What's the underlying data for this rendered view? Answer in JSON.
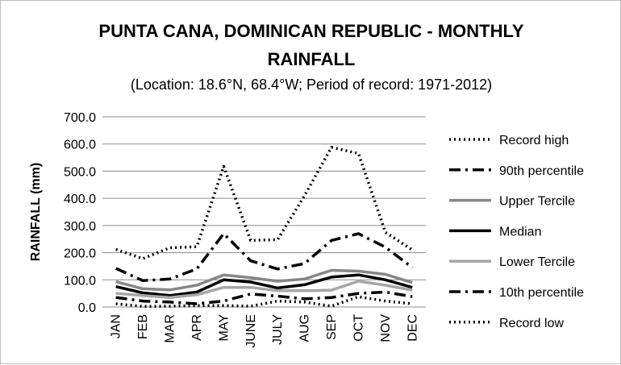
{
  "chart_data": {
    "type": "line",
    "title_line1": "PUNTA CANA, DOMINICAN REPUBLIC - MONTHLY",
    "title_line2": "RAINFALL",
    "subtitle": "(Location: 18.6°N, 68.4°W; Period of record: 1971-2012)",
    "ylabel": "RAINFALL (mm)",
    "xlabel": "",
    "ylim": [
      0,
      700
    ],
    "yticks": [
      "0.0",
      "100.0",
      "200.0",
      "300.0",
      "400.0",
      "500.0",
      "600.0",
      "700.0"
    ],
    "categories": [
      "JAN",
      "FEB",
      "MAR",
      "APR",
      "MAY",
      "JUNE",
      "JULY",
      "AUG",
      "SEP",
      "OCT",
      "NOV",
      "DEC"
    ],
    "grid": true,
    "legend_position": "right",
    "series": [
      {
        "name": "Record high",
        "style": "dotted",
        "color": "#000000",
        "values": [
          212,
          178,
          218,
          222,
          518,
          245,
          248,
          410,
          588,
          565,
          275,
          210
        ]
      },
      {
        "name": "90th percentile",
        "style": "dashdot",
        "color": "#000000",
        "values": [
          142,
          97,
          103,
          140,
          270,
          170,
          140,
          160,
          245,
          270,
          220,
          145
        ]
      },
      {
        "name": "Upper Tercile",
        "style": "solid",
        "color": "#868686",
        "values": [
          93,
          67,
          63,
          80,
          118,
          108,
          95,
          103,
          135,
          132,
          120,
          90
        ]
      },
      {
        "name": "Median",
        "style": "solid",
        "color": "#000000",
        "values": [
          75,
          52,
          42,
          55,
          100,
          92,
          70,
          82,
          110,
          118,
          100,
          72
        ]
      },
      {
        "name": "Lower Tercile",
        "style": "solid",
        "color": "#a6a6a6",
        "values": [
          50,
          42,
          35,
          45,
          72,
          72,
          60,
          60,
          62,
          95,
          80,
          62
        ]
      },
      {
        "name": "10th percentile",
        "style": "dashdot",
        "color": "#000000",
        "values": [
          35,
          22,
          18,
          12,
          22,
          48,
          40,
          30,
          35,
          50,
          55,
          38
        ]
      },
      {
        "name": "Record low",
        "style": "dotted",
        "color": "#000000",
        "values": [
          12,
          2,
          3,
          5,
          5,
          3,
          22,
          18,
          3,
          38,
          22,
          12
        ]
      }
    ]
  }
}
